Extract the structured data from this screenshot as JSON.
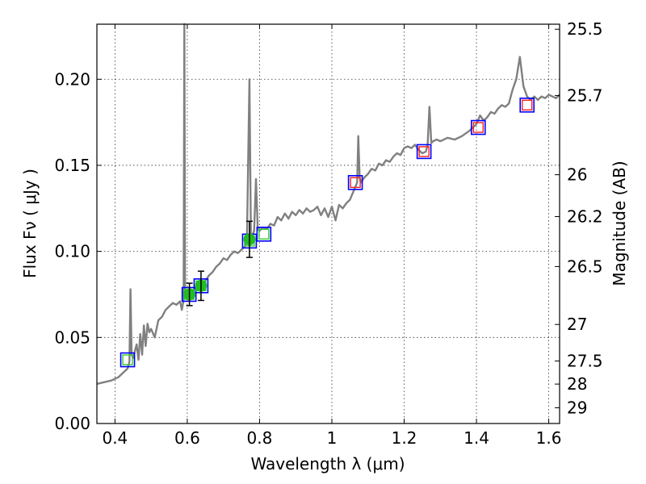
{
  "chart_data": {
    "type": "scatter",
    "title": "",
    "xlabel": "Wavelength  λ (μm)",
    "ylabel": "Flux  Fν  ( μJy )",
    "y2label": "Magnitude (AB)",
    "xlim": [
      0.35,
      1.63
    ],
    "ylim": [
      0.0,
      0.232
    ],
    "grid": true,
    "x_ticks": [
      {
        "value": 0.4,
        "label": "0.4"
      },
      {
        "value": 0.6,
        "label": "0.6"
      },
      {
        "value": 0.8,
        "label": "0.8"
      },
      {
        "value": 1.0,
        "label": "1"
      },
      {
        "value": 1.2,
        "label": "1.2"
      },
      {
        "value": 1.4,
        "label": "1.4"
      },
      {
        "value": 1.6,
        "label": "1.6"
      }
    ],
    "y_ticks": [
      {
        "value": 0.0,
        "label": "0.00"
      },
      {
        "value": 0.05,
        "label": "0.05"
      },
      {
        "value": 0.1,
        "label": "0.10"
      },
      {
        "value": 0.15,
        "label": "0.15"
      },
      {
        "value": 0.2,
        "label": "0.20"
      }
    ],
    "y2_ticks": [
      {
        "mag": 25.5,
        "label": "25.5"
      },
      {
        "mag": 25.7,
        "label": "25.7"
      },
      {
        "mag": 26.0,
        "label": "26"
      },
      {
        "mag": 26.2,
        "label": "26.2"
      },
      {
        "mag": 26.5,
        "label": "26.5"
      },
      {
        "mag": 27.0,
        "label": "27"
      },
      {
        "mag": 27.5,
        "label": "27.5"
      },
      {
        "mag": 28.0,
        "label": "28"
      },
      {
        "mag": 29.0,
        "label": "29"
      }
    ],
    "series": [
      {
        "kind": "line",
        "color": "#808080",
        "points": [
          [
            0.35,
            0.023
          ],
          [
            0.37,
            0.024
          ],
          [
            0.39,
            0.025
          ],
          [
            0.41,
            0.027
          ],
          [
            0.425,
            0.03
          ],
          [
            0.435,
            0.032
          ],
          [
            0.44,
            0.036
          ],
          [
            0.443,
            0.078
          ],
          [
            0.446,
            0.04
          ],
          [
            0.45,
            0.038
          ],
          [
            0.455,
            0.042
          ],
          [
            0.46,
            0.046
          ],
          [
            0.465,
            0.037
          ],
          [
            0.47,
            0.052
          ],
          [
            0.475,
            0.04
          ],
          [
            0.48,
            0.057
          ],
          [
            0.485,
            0.045
          ],
          [
            0.49,
            0.058
          ],
          [
            0.495,
            0.053
          ],
          [
            0.5,
            0.055
          ],
          [
            0.51,
            0.05
          ],
          [
            0.52,
            0.06
          ],
          [
            0.53,
            0.062
          ],
          [
            0.54,
            0.066
          ],
          [
            0.55,
            0.068
          ],
          [
            0.56,
            0.07
          ],
          [
            0.57,
            0.069
          ],
          [
            0.58,
            0.071
          ],
          [
            0.585,
            0.066
          ],
          [
            0.59,
            0.072
          ],
          [
            0.592,
            0.232
          ],
          [
            0.594,
            0.075
          ],
          [
            0.6,
            0.074
          ],
          [
            0.61,
            0.076
          ],
          [
            0.62,
            0.078
          ],
          [
            0.63,
            0.08
          ],
          [
            0.64,
            0.081
          ],
          [
            0.65,
            0.083
          ],
          [
            0.66,
            0.086
          ],
          [
            0.67,
            0.088
          ],
          [
            0.68,
            0.091
          ],
          [
            0.69,
            0.093
          ],
          [
            0.7,
            0.096
          ],
          [
            0.71,
            0.095
          ],
          [
            0.72,
            0.098
          ],
          [
            0.73,
            0.1
          ],
          [
            0.74,
            0.099
          ],
          [
            0.75,
            0.101
          ],
          [
            0.76,
            0.103
          ],
          [
            0.765,
            0.106
          ],
          [
            0.772,
            0.2
          ],
          [
            0.776,
            0.11
          ],
          [
            0.78,
            0.109
          ],
          [
            0.785,
            0.112
          ],
          [
            0.79,
            0.142
          ],
          [
            0.795,
            0.113
          ],
          [
            0.8,
            0.112
          ],
          [
            0.81,
            0.114
          ],
          [
            0.82,
            0.113
          ],
          [
            0.83,
            0.116
          ],
          [
            0.84,
            0.115
          ],
          [
            0.85,
            0.12
          ],
          [
            0.86,
            0.118
          ],
          [
            0.87,
            0.122
          ],
          [
            0.88,
            0.119
          ],
          [
            0.89,
            0.123
          ],
          [
            0.9,
            0.121
          ],
          [
            0.91,
            0.124
          ],
          [
            0.92,
            0.122
          ],
          [
            0.93,
            0.125
          ],
          [
            0.94,
            0.123
          ],
          [
            0.95,
            0.124
          ],
          [
            0.96,
            0.126
          ],
          [
            0.97,
            0.121
          ],
          [
            0.98,
            0.125
          ],
          [
            0.99,
            0.12
          ],
          [
            1.0,
            0.126
          ],
          [
            1.01,
            0.118
          ],
          [
            1.02,
            0.127
          ],
          [
            1.03,
            0.125
          ],
          [
            1.04,
            0.128
          ],
          [
            1.05,
            0.13
          ],
          [
            1.06,
            0.135
          ],
          [
            1.07,
            0.14
          ],
          [
            1.073,
            0.167
          ],
          [
            1.077,
            0.143
          ],
          [
            1.08,
            0.14
          ],
          [
            1.09,
            0.143
          ],
          [
            1.1,
            0.145
          ],
          [
            1.11,
            0.148
          ],
          [
            1.12,
            0.147
          ],
          [
            1.13,
            0.151
          ],
          [
            1.14,
            0.15
          ],
          [
            1.15,
            0.153
          ],
          [
            1.16,
            0.152
          ],
          [
            1.17,
            0.155
          ],
          [
            1.18,
            0.157
          ],
          [
            1.19,
            0.156
          ],
          [
            1.2,
            0.16
          ],
          [
            1.21,
            0.161
          ],
          [
            1.22,
            0.16
          ],
          [
            1.23,
            0.162
          ],
          [
            1.24,
            0.159
          ],
          [
            1.25,
            0.157
          ],
          [
            1.26,
            0.158
          ],
          [
            1.265,
            0.162
          ],
          [
            1.27,
            0.184
          ],
          [
            1.275,
            0.163
          ],
          [
            1.28,
            0.164
          ],
          [
            1.29,
            0.165
          ],
          [
            1.3,
            0.164
          ],
          [
            1.32,
            0.166
          ],
          [
            1.34,
            0.165
          ],
          [
            1.36,
            0.167
          ],
          [
            1.38,
            0.17
          ],
          [
            1.4,
            0.174
          ],
          [
            1.41,
            0.179
          ],
          [
            1.42,
            0.176
          ],
          [
            1.43,
            0.178
          ],
          [
            1.44,
            0.181
          ],
          [
            1.45,
            0.18
          ],
          [
            1.46,
            0.183
          ],
          [
            1.47,
            0.185
          ],
          [
            1.48,
            0.184
          ],
          [
            1.49,
            0.186
          ],
          [
            1.5,
            0.194
          ],
          [
            1.51,
            0.2
          ],
          [
            1.52,
            0.213
          ],
          [
            1.53,
            0.196
          ],
          [
            1.54,
            0.19
          ],
          [
            1.55,
            0.188
          ],
          [
            1.56,
            0.19
          ],
          [
            1.57,
            0.188
          ],
          [
            1.58,
            0.19
          ],
          [
            1.59,
            0.189
          ],
          [
            1.6,
            0.191
          ],
          [
            1.61,
            0.19
          ],
          [
            1.62,
            0.189
          ],
          [
            1.63,
            0.191
          ]
        ]
      },
      {
        "kind": "open-square",
        "color": "#0000ff",
        "points": [
          [
            0.435,
            0.037
          ],
          [
            0.605,
            0.075
          ],
          [
            0.638,
            0.08
          ],
          [
            0.772,
            0.106
          ],
          [
            0.812,
            0.11
          ],
          [
            1.065,
            0.14
          ],
          [
            1.255,
            0.158
          ],
          [
            1.405,
            0.172
          ],
          [
            1.54,
            0.185
          ]
        ]
      },
      {
        "kind": "open-square-small",
        "color": "#32cd32",
        "points": [
          [
            0.435,
            0.037
          ],
          [
            0.605,
            0.075
          ],
          [
            0.638,
            0.08
          ],
          [
            0.772,
            0.106
          ],
          [
            0.812,
            0.11
          ]
        ]
      },
      {
        "kind": "open-square-small",
        "color": "#ff2020",
        "points": [
          [
            1.065,
            0.14
          ],
          [
            1.255,
            0.158
          ],
          [
            1.405,
            0.172
          ],
          [
            1.54,
            0.185
          ]
        ]
      },
      {
        "kind": "filled-circle-errorbar",
        "color": "#22bb22",
        "points": [
          {
            "x": 0.606,
            "y": 0.075,
            "err": 0.0065
          },
          {
            "x": 0.638,
            "y": 0.08,
            "err": 0.0085
          },
          {
            "x": 0.772,
            "y": 0.107,
            "err": 0.0105
          }
        ]
      }
    ]
  }
}
